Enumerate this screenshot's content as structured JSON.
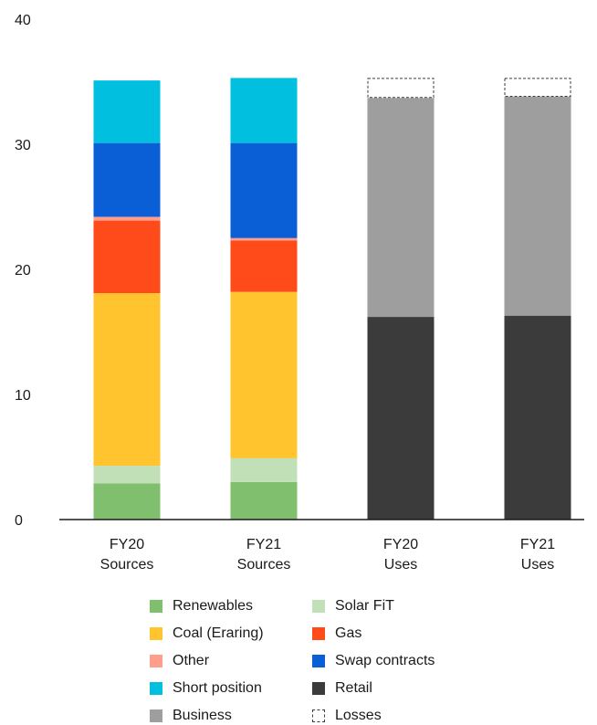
{
  "chart_data": {
    "type": "bar",
    "stacked": true,
    "ylim": [
      0,
      40
    ],
    "yticks": [
      0,
      10,
      20,
      30,
      40
    ],
    "grid": false,
    "legend_position": "bottom",
    "categories": [
      {
        "line1": "FY20",
        "line2": "Sources"
      },
      {
        "line1": "FY21",
        "line2": "Sources"
      },
      {
        "line1": "FY20",
        "line2": "Uses"
      },
      {
        "line1": "FY21",
        "line2": "Uses"
      }
    ],
    "series": [
      {
        "key": "renewables",
        "name": "Renewables",
        "color": "#7fbf6e",
        "values": [
          2.9,
          3.0,
          0,
          0
        ]
      },
      {
        "key": "solar_fit",
        "name": "Solar FiT",
        "color": "#c2e0b8",
        "values": [
          1.4,
          1.9,
          0,
          0
        ]
      },
      {
        "key": "coal",
        "name": "Coal (Eraring)",
        "color": "#ffc42e",
        "values": [
          13.8,
          13.3,
          0,
          0
        ]
      },
      {
        "key": "gas",
        "name": "Gas",
        "color": "#ff4b19",
        "values": [
          5.8,
          4.1,
          0,
          0
        ]
      },
      {
        "key": "other",
        "name": "Other",
        "color": "#ff9e8c",
        "values": [
          0.3,
          0.2,
          0,
          0
        ]
      },
      {
        "key": "swap",
        "name": "Swap contracts",
        "color": "#0b5fd6",
        "values": [
          5.9,
          7.6,
          0,
          0
        ]
      },
      {
        "key": "short",
        "name": "Short position",
        "color": "#00bfdf",
        "values": [
          5.0,
          5.2,
          0,
          0
        ]
      },
      {
        "key": "retail",
        "name": "Retail",
        "color": "#3b3b3b",
        "values": [
          0,
          0,
          16.2,
          16.3
        ]
      },
      {
        "key": "business",
        "name": "Business",
        "color": "#9e9e9e",
        "values": [
          0,
          0,
          17.5,
          17.5
        ]
      },
      {
        "key": "losses",
        "name": "Losses",
        "color": "#3b3b3b",
        "dashed": true,
        "values": [
          0,
          0,
          1.6,
          1.5
        ]
      }
    ]
  }
}
